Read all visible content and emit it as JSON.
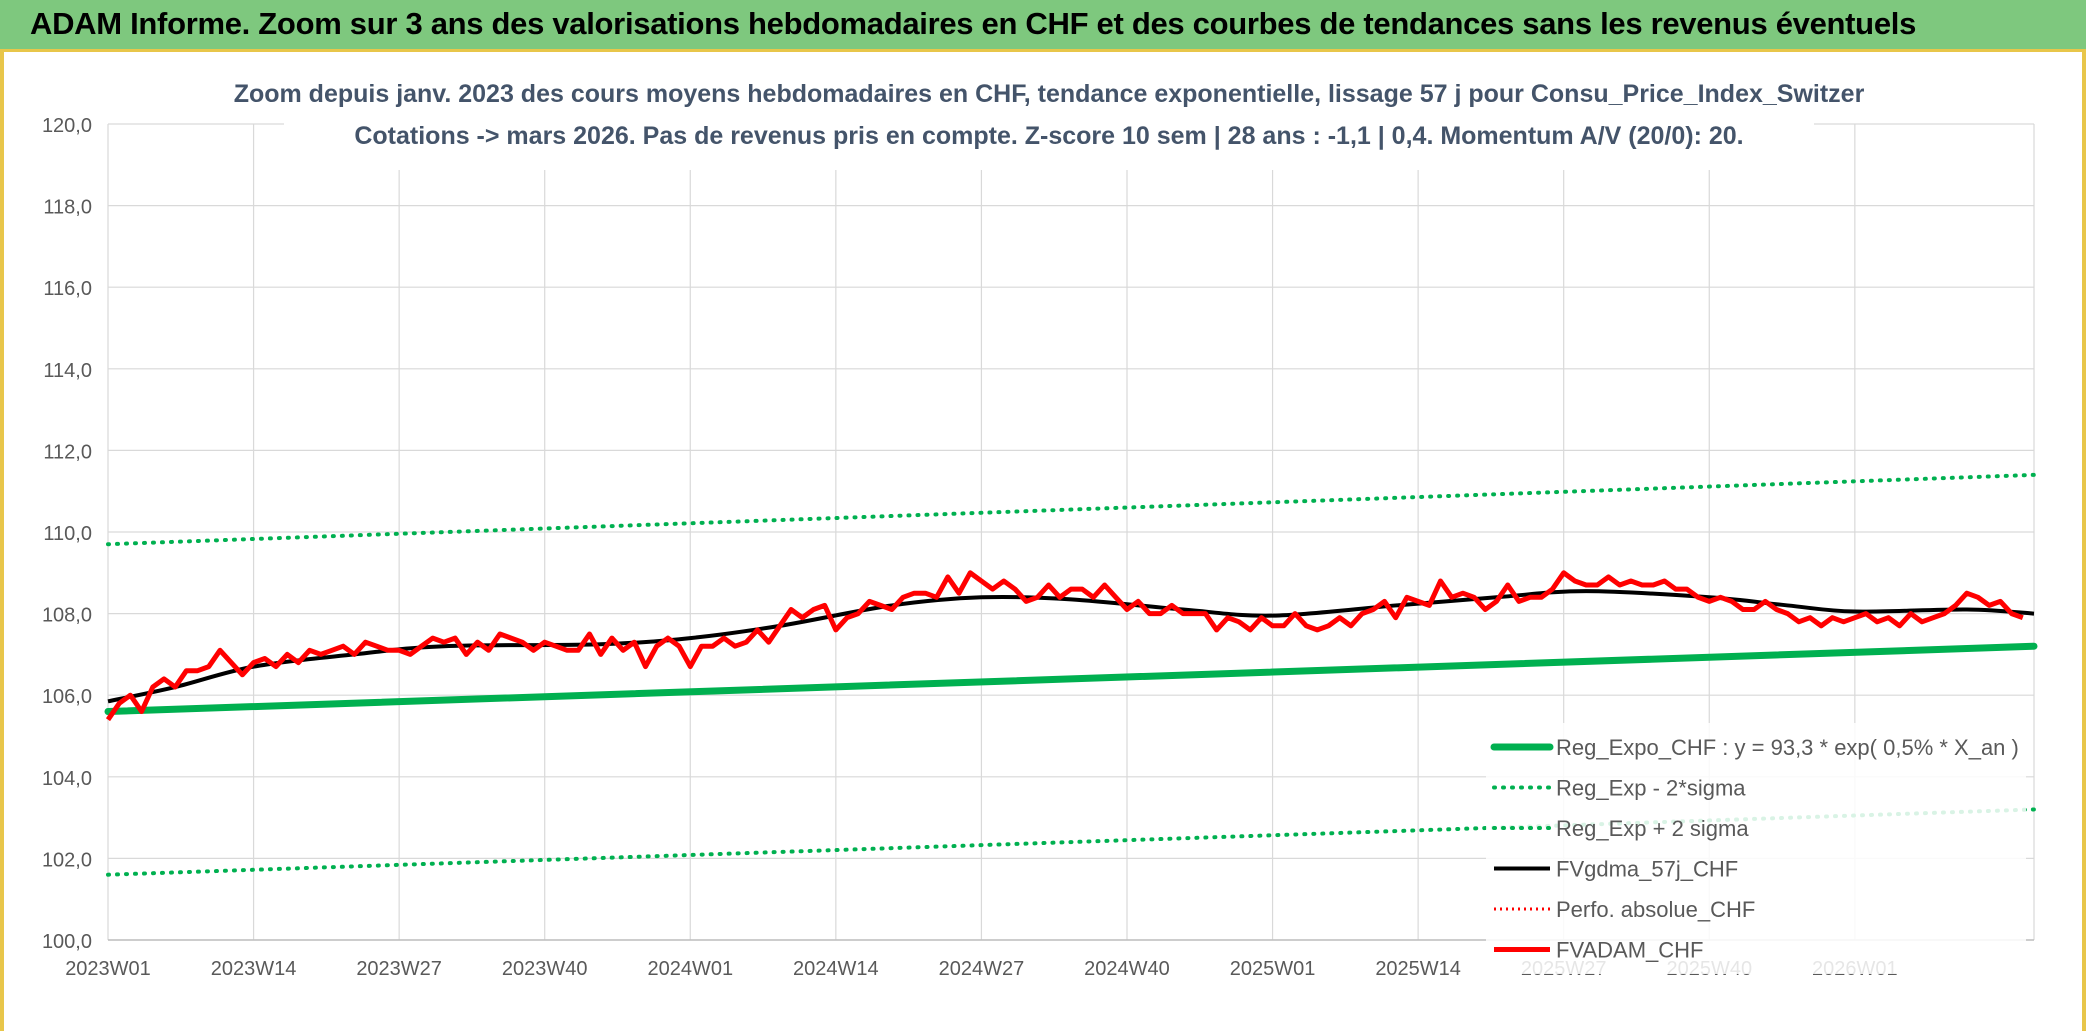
{
  "banner": {
    "title": "ADAM Informe. Zoom sur 3 ans des valorisations hebdomadaires en CHF et des courbes de tendances sans les revenus éventuels"
  },
  "chart_data": {
    "type": "line",
    "title": "Zoom depuis janv. 2023 des cours moyens hebdomadaires en CHF, tendance exponentielle, lissage 57 j pour Consu_Price_Index_Switzer",
    "subtitle": "Cotations -> mars 2026. Pas de revenus pris en compte. Z-score 10 sem | 28 ans : -1,1 | 0,4. Momentum A/V (20/0): 20.",
    "xlabel": "",
    "ylabel": "",
    "ylim": [
      100,
      120
    ],
    "yticks": [
      "100,0",
      "102,0",
      "104,0",
      "106,0",
      "108,0",
      "110,0",
      "112,0",
      "114,0",
      "116,0",
      "118,0",
      "120,0"
    ],
    "x_tick_labels": [
      "2023W01",
      "2023W14",
      "2023W27",
      "2023W40",
      "2024W01",
      "2024W14",
      "2024W27",
      "2024W40",
      "2025W01",
      "2025W14",
      "2025W27",
      "2025W40",
      "2026W01"
    ],
    "x_tick_index": [
      0,
      13,
      26,
      39,
      52,
      65,
      78,
      91,
      104,
      117,
      130,
      143,
      156
    ],
    "grid": true,
    "legend_position": "bottom-right",
    "colors": {
      "reg_expo": "#00b050",
      "band": "#00b050",
      "gdma": "#000000",
      "perfo": "#ff0000",
      "fvadam": "#ff0000"
    },
    "series": [
      {
        "name": "Reg_Expo_CHF : y = 93,3 * exp( 0,5% *  X_an )",
        "key": "reg_expo",
        "style": "solid-thick",
        "anchors": [
          [
            0,
            105.6
          ],
          [
            172,
            107.2
          ]
        ]
      },
      {
        "name": "Reg_Exp - 2*sigma",
        "key": "band_low",
        "style": "dotted",
        "anchors": [
          [
            0,
            101.6
          ],
          [
            172,
            103.2
          ]
        ]
      },
      {
        "name": "Reg_Exp + 2 sigma",
        "key": "band_high",
        "style": "dotted",
        "anchors": [
          [
            0,
            109.7
          ],
          [
            172,
            111.4
          ]
        ]
      },
      {
        "name": "FVgdma_57j_CHF",
        "key": "gdma",
        "style": "solid",
        "anchors": [
          [
            0,
            105.85
          ],
          [
            6,
            106.2
          ],
          [
            13,
            106.7
          ],
          [
            22,
            107.0
          ],
          [
            30,
            107.2
          ],
          [
            44,
            107.25
          ],
          [
            52,
            107.4
          ],
          [
            60,
            107.7
          ],
          [
            70,
            108.2
          ],
          [
            78,
            108.4
          ],
          [
            86,
            108.35
          ],
          [
            96,
            108.1
          ],
          [
            104,
            107.95
          ],
          [
            115,
            108.2
          ],
          [
            124,
            108.4
          ],
          [
            132,
            108.55
          ],
          [
            143,
            108.4
          ],
          [
            150,
            108.2
          ],
          [
            156,
            108.05
          ],
          [
            166,
            108.1
          ],
          [
            172,
            108.0
          ]
        ]
      },
      {
        "name": "Perfo. absolue_CHF",
        "key": "perfo",
        "style": "dotted-red",
        "anchors": []
      },
      {
        "name": "FVADAM_CHF",
        "key": "fvadam",
        "style": "solid-thick",
        "points": [
          105.4,
          105.8,
          106.0,
          105.6,
          106.2,
          106.4,
          106.2,
          106.6,
          106.6,
          106.7,
          107.1,
          106.8,
          106.5,
          106.8,
          106.9,
          106.7,
          107.0,
          106.8,
          107.1,
          107.0,
          107.1,
          107.2,
          107.0,
          107.3,
          107.2,
          107.1,
          107.1,
          107.0,
          107.2,
          107.4,
          107.3,
          107.4,
          107.0,
          107.3,
          107.1,
          107.5,
          107.4,
          107.3,
          107.1,
          107.3,
          107.2,
          107.1,
          107.1,
          107.5,
          107.0,
          107.4,
          107.1,
          107.3,
          106.7,
          107.2,
          107.4,
          107.2,
          106.7,
          107.2,
          107.2,
          107.4,
          107.2,
          107.3,
          107.6,
          107.3,
          107.7,
          108.1,
          107.9,
          108.1,
          108.2,
          107.6,
          107.9,
          108.0,
          108.3,
          108.2,
          108.1,
          108.4,
          108.5,
          108.5,
          108.4,
          108.9,
          108.5,
          109.0,
          108.8,
          108.6,
          108.8,
          108.6,
          108.3,
          108.4,
          108.7,
          108.4,
          108.6,
          108.6,
          108.4,
          108.7,
          108.4,
          108.1,
          108.3,
          108.0,
          108.0,
          108.2,
          108.0,
          108.0,
          108.0,
          107.6,
          107.9,
          107.8,
          107.6,
          107.9,
          107.7,
          107.7,
          108.0,
          107.7,
          107.6,
          107.7,
          107.9,
          107.7,
          108.0,
          108.1,
          108.3,
          107.9,
          108.4,
          108.3,
          108.2,
          108.8,
          108.4,
          108.5,
          108.4,
          108.1,
          108.3,
          108.7,
          108.3,
          108.4,
          108.4,
          108.6,
          109.0,
          108.8,
          108.7,
          108.7,
          108.9,
          108.7,
          108.8,
          108.7,
          108.7,
          108.8,
          108.6,
          108.6,
          108.4,
          108.3,
          108.4,
          108.3,
          108.1,
          108.1,
          108.3,
          108.1,
          108.0,
          107.8,
          107.9,
          107.7,
          107.9,
          107.8,
          107.9,
          108.0,
          107.8,
          107.9,
          107.7,
          108.0,
          107.8,
          107.9,
          108.0,
          108.2,
          108.5,
          108.4,
          108.2,
          108.3,
          108.0,
          107.9
        ]
      }
    ]
  }
}
